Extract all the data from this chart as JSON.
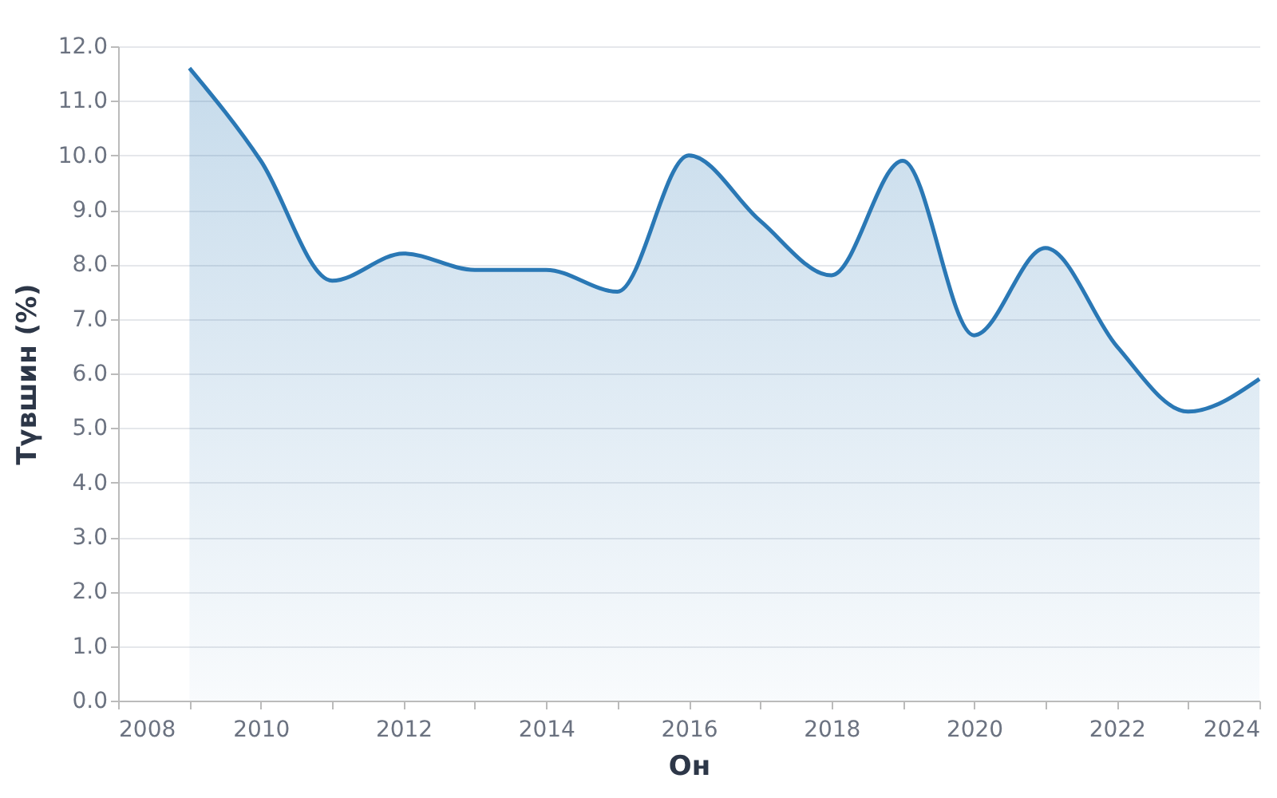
{
  "chart_data": {
    "type": "area",
    "xlabel": "Он",
    "ylabel": "Түвшин (%)",
    "x": [
      2009,
      2010,
      2011,
      2012,
      2013,
      2014,
      2015,
      2016,
      2017,
      2018,
      2019,
      2020,
      2021,
      2022,
      2023,
      2024
    ],
    "series": [
      {
        "color": "#2a78b5",
        "values": [
          11.6,
          9.9,
          7.7,
          8.2,
          7.9,
          7.9,
          7.5,
          10.0,
          8.8,
          7.8,
          9.9,
          6.7,
          8.3,
          6.5,
          5.3,
          5.9
        ]
      }
    ],
    "xlim": [
      2008,
      2024
    ],
    "xticks": [
      2008,
      {
        "value": 2009,
        "label": null
      },
      2010,
      {
        "value": 2011,
        "label": null
      },
      2012,
      {
        "value": 2013,
        "label": null
      },
      2014,
      {
        "value": 2015,
        "label": null
      },
      2016,
      {
        "value": 2017,
        "label": null
      },
      2018,
      {
        "value": 2019,
        "label": null
      },
      2020,
      {
        "value": 2021,
        "label": null
      },
      2022,
      {
        "value": 2023,
        "label": null
      },
      2024
    ],
    "ylim": [
      0,
      12
    ],
    "yticks": [
      {
        "value": 0,
        "label": "0.0"
      },
      {
        "value": 1,
        "label": "1.0"
      },
      {
        "value": 2,
        "label": "2.0"
      },
      {
        "value": 3,
        "label": "3.0"
      },
      {
        "value": 4,
        "label": "4.0"
      },
      {
        "value": 5,
        "label": "5.0"
      },
      {
        "value": 6,
        "label": "6.0"
      },
      {
        "value": 7,
        "label": "7.0"
      },
      {
        "value": 8,
        "label": "8.0"
      },
      {
        "value": 9,
        "label": "9.0"
      },
      {
        "value": 10,
        "label": "10.0"
      },
      {
        "value": 11,
        "label": "11.0"
      },
      {
        "value": 12,
        "label": "12.0"
      }
    ],
    "grid": "y"
  }
}
